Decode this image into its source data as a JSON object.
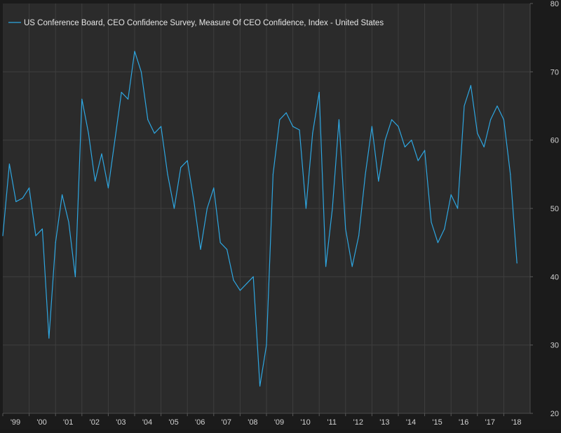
{
  "chart_data": {
    "type": "line",
    "series": [
      {
        "name": "US Conference Board, CEO Confidence Survey, Measure Of CEO Confidence, Index - United States",
        "color": "#2ea6e0",
        "x": [
          1999.0,
          1999.25,
          1999.5,
          1999.75,
          2000.0,
          2000.25,
          2000.5,
          2000.75,
          2001.0,
          2001.25,
          2001.5,
          2001.75,
          2002.0,
          2002.25,
          2002.5,
          2002.75,
          2003.0,
          2003.25,
          2003.5,
          2003.75,
          2004.0,
          2004.25,
          2004.5,
          2004.75,
          2005.0,
          2005.25,
          2005.5,
          2005.75,
          2006.0,
          2006.25,
          2006.5,
          2006.75,
          2007.0,
          2007.25,
          2007.5,
          2007.75,
          2008.0,
          2008.25,
          2008.5,
          2008.75,
          2009.0,
          2009.25,
          2009.5,
          2009.75,
          2010.0,
          2010.25,
          2010.5,
          2010.75,
          2011.0,
          2011.25,
          2011.5,
          2011.75,
          2012.0,
          2012.25,
          2012.5,
          2012.75,
          2013.0,
          2013.25,
          2013.5,
          2013.75,
          2014.0,
          2014.25,
          2014.5,
          2014.75,
          2015.0,
          2015.25,
          2015.5,
          2015.75,
          2016.0,
          2016.25,
          2016.5,
          2016.75,
          2017.0,
          2017.25,
          2017.5,
          2017.75,
          2018.0,
          2018.25,
          2018.5
        ],
        "y": [
          46,
          56.5,
          51,
          51.5,
          53,
          46,
          47,
          31,
          45,
          52,
          48,
          40,
          66,
          61,
          54,
          58,
          53,
          60,
          67,
          66,
          73,
          70,
          63,
          61,
          62,
          55,
          50,
          56,
          57,
          51,
          44,
          50,
          53,
          45,
          44,
          39.5,
          38,
          39,
          40,
          24,
          30,
          55,
          63,
          64,
          62,
          61.5,
          50,
          61,
          67,
          41.5,
          50,
          63,
          47,
          41.5,
          46,
          55,
          62,
          54,
          60,
          63,
          62,
          59,
          60,
          57,
          58.5,
          48,
          45,
          47,
          52,
          50,
          65,
          68,
          61,
          59,
          63,
          65,
          63,
          55,
          42
        ]
      }
    ],
    "x_tick_labels": [
      "'99",
      "'00",
      "'01",
      "'02",
      "'03",
      "'04",
      "'05",
      "'06",
      "'07",
      "'08",
      "'09",
      "'10",
      "'11",
      "'12",
      "'13",
      "'14",
      "'15",
      "'16",
      "'17",
      "'18"
    ],
    "y_ticks": [
      20,
      30,
      40,
      50,
      60,
      70,
      80
    ],
    "ylim": [
      20,
      80
    ],
    "xlim": [
      1999.0,
      2019.0
    ],
    "grid": true,
    "legend_position": "top-left",
    "background": "#2b2b2b",
    "grid_color": "#3e3e3e",
    "axis_text_color": "#d2d2d2",
    "title": "",
    "xlabel": "",
    "ylabel": ""
  }
}
